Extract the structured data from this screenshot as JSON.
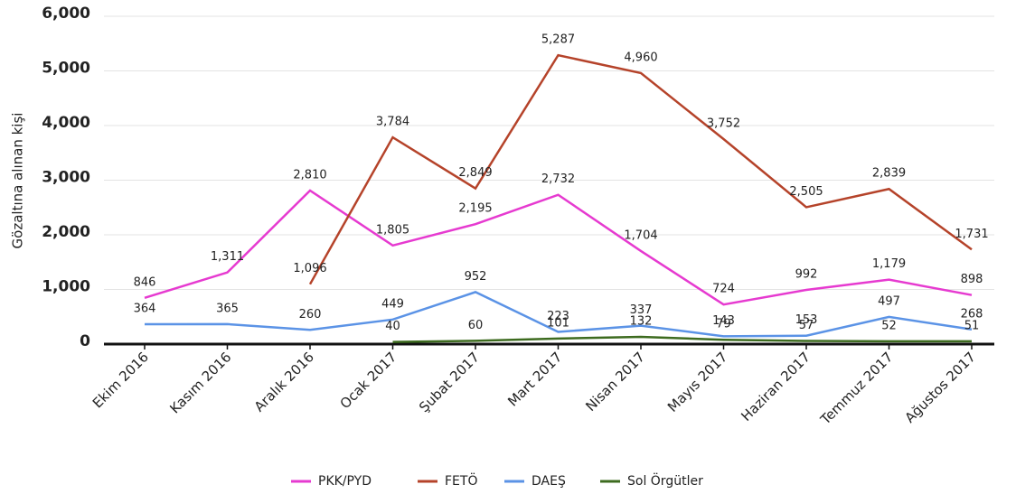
{
  "chart_data": {
    "type": "line",
    "ylabel": "Gözaltına alınan kişi",
    "categories": [
      "Ekim 2016",
      "Kasım 2016",
      "Aralık 2016",
      "Ocak 2017",
      "Şubat 2017",
      "Mart 2017",
      "Nisan 2017",
      "Mayıs 2017",
      "Haziran 2017",
      "Temmuz 2017",
      "Ağustos 2017"
    ],
    "series": [
      {
        "name": "PKK/PYD",
        "color": "#e63ad0",
        "values": [
          846,
          1311,
          2810,
          1805,
          2195,
          2732,
          1704,
          724,
          992,
          1179,
          898
        ],
        "value_labels": [
          "846",
          "1,311",
          "2,810",
          "1,805",
          "2,195",
          "2,732",
          "1,704",
          "724",
          "992",
          "1,179",
          "898"
        ]
      },
      {
        "name": "FETÖ",
        "color": "#b5432a",
        "values": [
          null,
          null,
          1096,
          3784,
          2849,
          5287,
          4960,
          3752,
          2505,
          2839,
          1731
        ],
        "value_labels": [
          null,
          null,
          "1,096",
          "3,784",
          "2,849",
          "5,287",
          "4,960",
          "3,752",
          "2,505",
          "2,839",
          "1,731"
        ]
      },
      {
        "name": "DAEŞ",
        "color": "#5b93e6",
        "values": [
          364,
          365,
          260,
          449,
          952,
          223,
          337,
          143,
          153,
          497,
          268
        ],
        "value_labels": [
          "364",
          "365",
          "260",
          "449",
          "952",
          "223",
          "337",
          "143",
          "153",
          "497",
          "268"
        ]
      },
      {
        "name": "Sol Örgütler",
        "color": "#3d6b1f",
        "values": [
          null,
          null,
          null,
          40,
          60,
          101,
          132,
          79,
          57,
          52,
          51
        ],
        "value_labels": [
          null,
          null,
          null,
          "40",
          "60",
          "101",
          "132",
          "79",
          "57",
          "52",
          "51"
        ]
      }
    ],
    "ylim": [
      0,
      6000
    ],
    "yticks": [
      0,
      {
        "value": 1000,
        "label": "1,000"
      },
      {
        "value": 2000,
        "label": "2,000"
      },
      {
        "value": 3000,
        "label": "3,000"
      },
      {
        "value": 4000,
        "label": "4,000"
      },
      {
        "value": 5000,
        "label": "5,000"
      },
      {
        "value": 6000,
        "label": "6,000"
      }
    ],
    "grid": true
  }
}
